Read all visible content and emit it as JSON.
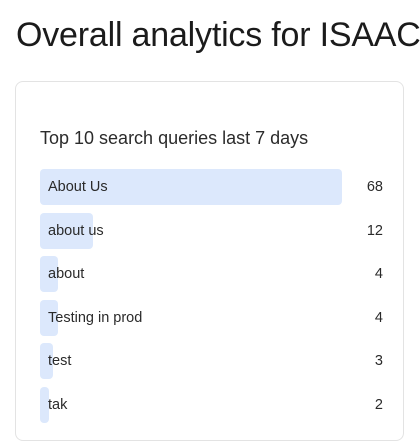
{
  "page": {
    "title": "Overall analytics for ISAAC"
  },
  "card": {
    "title": "Top 10 search queries last 7 days"
  },
  "chart_data": {
    "type": "bar",
    "title": "Top 10 search queries last 7 days",
    "categories": [
      "About Us",
      "about us",
      "about",
      "Testing in prod",
      "test",
      "tak"
    ],
    "values": [
      68,
      12,
      4,
      4,
      3,
      2
    ],
    "max": 68
  },
  "colors": {
    "bar": "#dce8fc"
  }
}
